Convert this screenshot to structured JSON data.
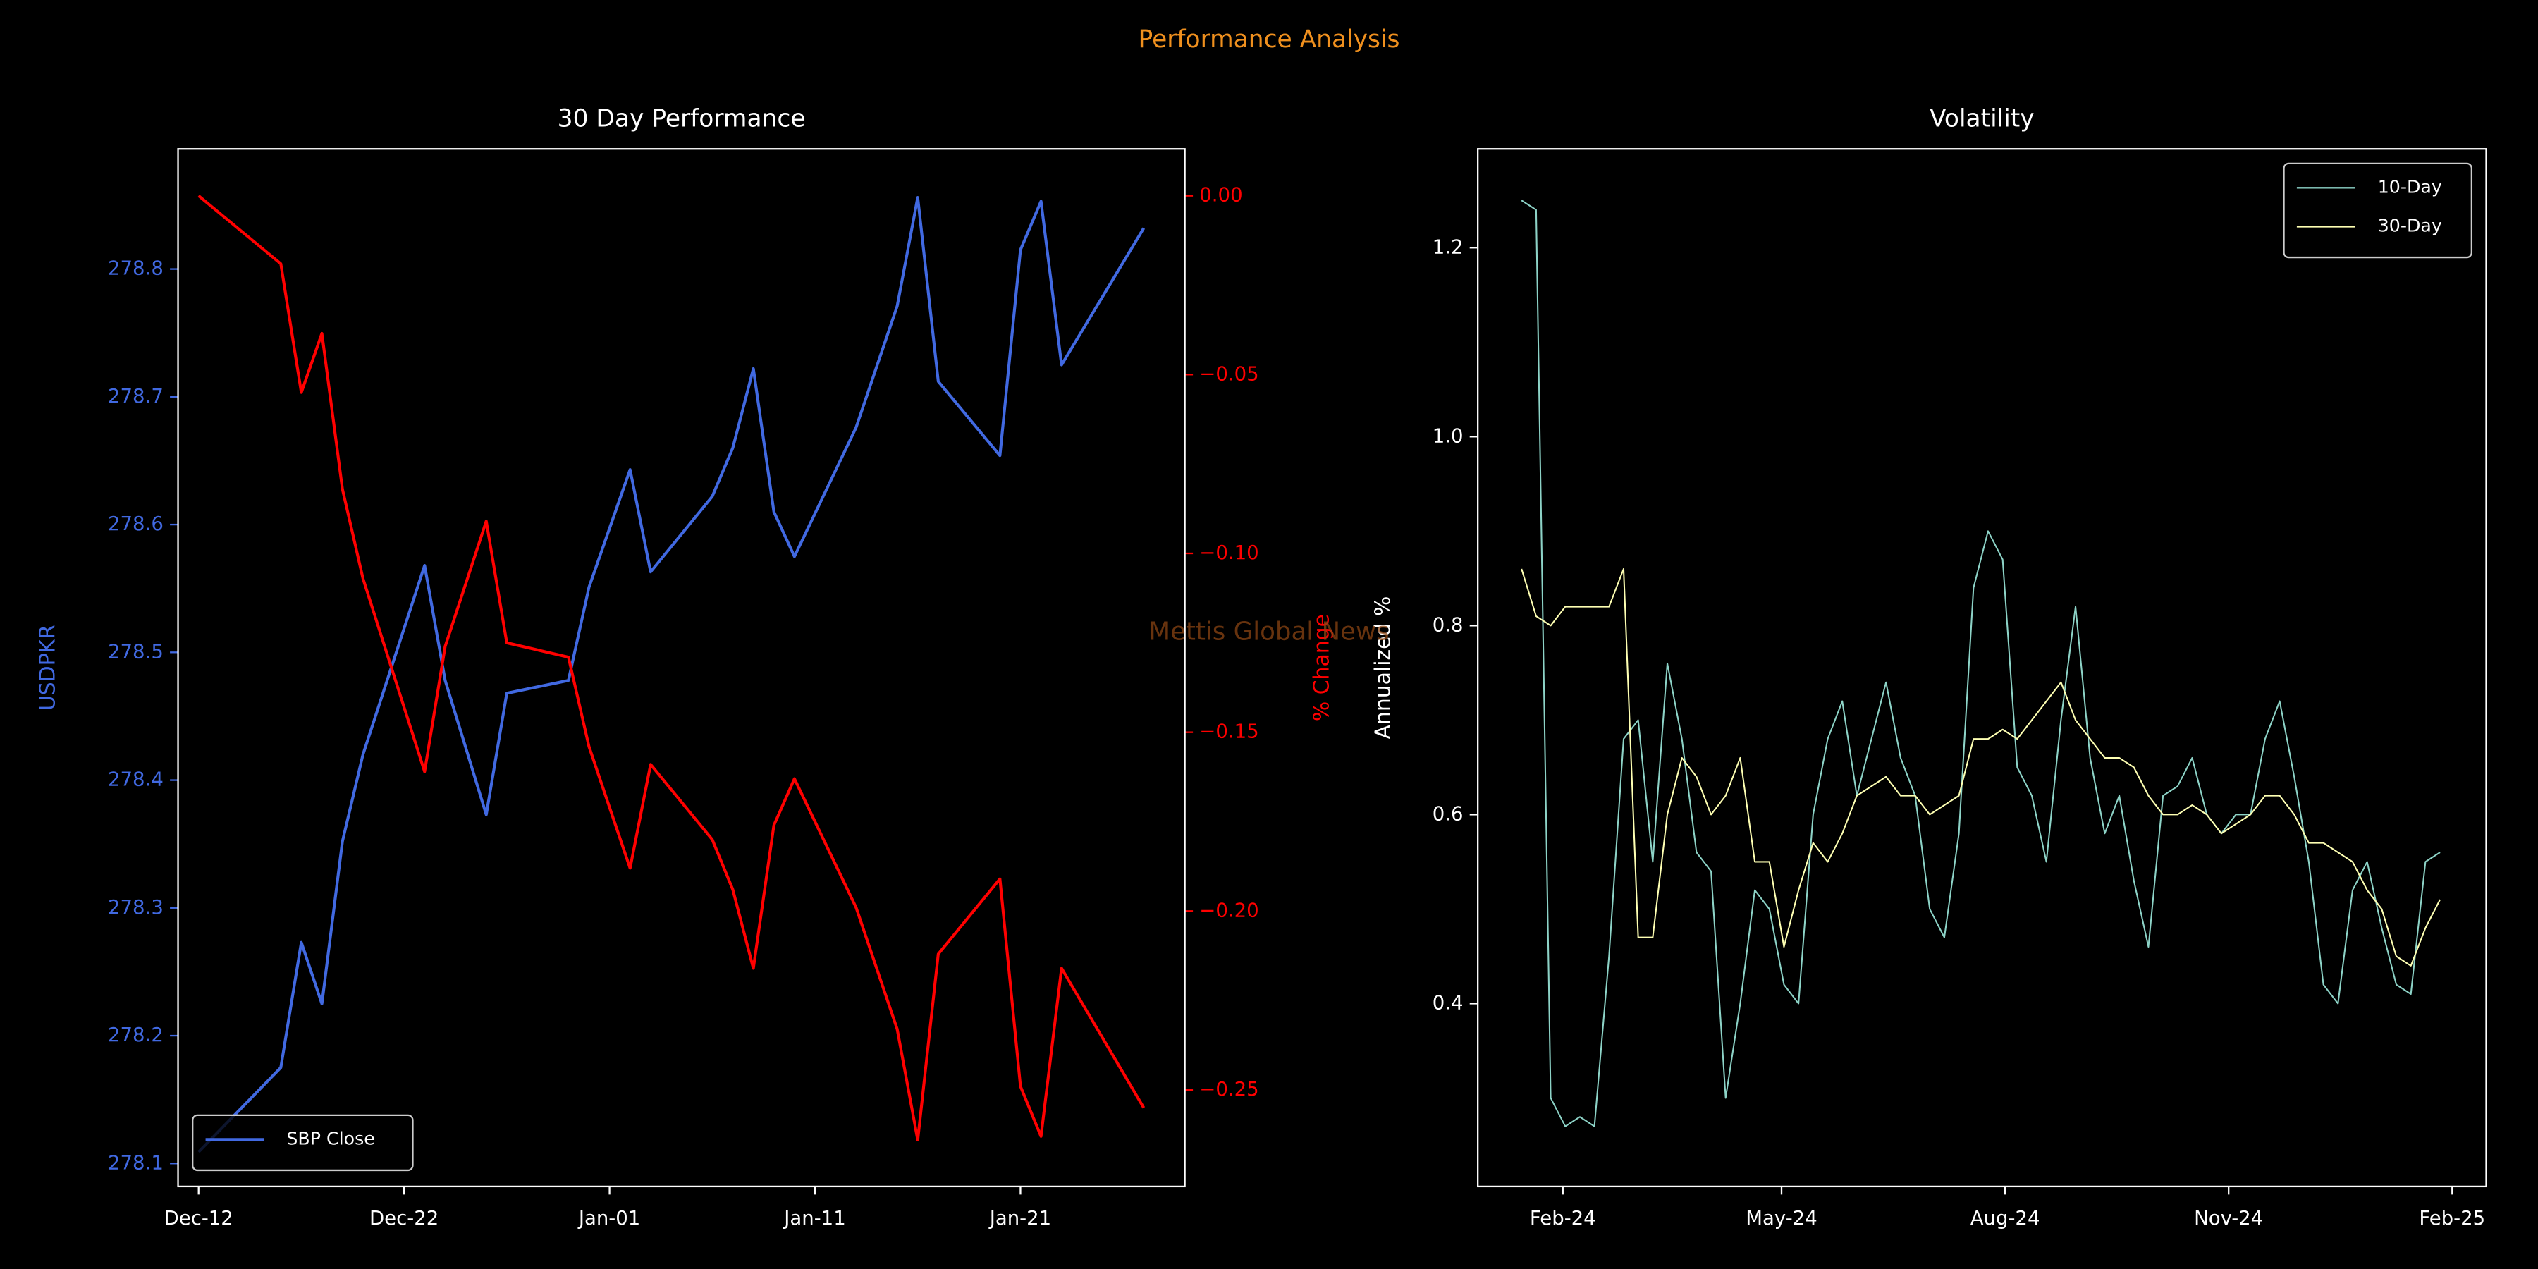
{
  "title": "Performance Analysis",
  "watermark": "Mettis Global News",
  "chart_data": [
    {
      "type": "line",
      "title": "30 Day Performance",
      "ylabel": "USDPKR",
      "y2label": "% Change",
      "x": [
        "Dec-12",
        "Dec-16",
        "Dec-17",
        "Dec-18",
        "Dec-19",
        "Dec-20",
        "Dec-23",
        "Dec-24",
        "Dec-26",
        "Dec-27",
        "Dec-30",
        "Dec-31",
        "Jan-02",
        "Jan-03",
        "Jan-06",
        "Jan-07",
        "Jan-08",
        "Jan-09",
        "Jan-10",
        "Jan-13",
        "Jan-15",
        "Jan-16",
        "Jan-17",
        "Jan-20",
        "Jan-21",
        "Jan-22",
        "Jan-23",
        "Jan-27"
      ],
      "series": [
        {
          "name": "SBP Close",
          "color": "#4169e1",
          "values": [
            278.109,
            278.175,
            278.273,
            278.225,
            278.352,
            278.42,
            278.568,
            278.478,
            278.373,
            278.468,
            278.478,
            278.551,
            278.643,
            278.563,
            278.622,
            278.66,
            278.722,
            278.61,
            278.575,
            278.676,
            278.771,
            278.856,
            278.712,
            278.654,
            278.815,
            278.853,
            278.725,
            278.832
          ]
        },
        {
          "color": "#ff0000",
          "axis": "y2",
          "values": [
            0.0,
            -0.019,
            -0.055,
            -0.0385,
            -0.082,
            -0.107,
            -0.161,
            -0.126,
            -0.091,
            -0.125,
            -0.129,
            -0.154,
            -0.188,
            -0.159,
            -0.18,
            -0.194,
            -0.216,
            -0.176,
            -0.163,
            -0.199,
            -0.233,
            -0.264,
            -0.212,
            -0.191,
            -0.249,
            -0.263,
            -0.216,
            -0.255
          ]
        }
      ],
      "xlim": [
        "Dec-11",
        "Jan-29"
      ],
      "xticks": [
        "Dec-12",
        "Dec-22",
        "Jan-01",
        "Jan-11",
        "Jan-21"
      ],
      "ylim": [
        278.082,
        278.894
      ],
      "yticks": [
        278.1,
        278.2,
        278.3,
        278.4,
        278.5,
        278.6,
        278.7,
        278.8
      ],
      "y2lim": [
        -0.277,
        0.0131
      ],
      "y2ticks": [
        {
          "value": 0,
          "label": "0.00"
        },
        {
          "value": -0.05,
          "label": "−0.05"
        },
        {
          "value": -0.1,
          "label": "−0.10"
        },
        {
          "value": -0.15,
          "label": "−0.15"
        },
        {
          "value": -0.2,
          "label": "−0.20"
        },
        {
          "value": -0.25,
          "label": "−0.25"
        }
      ],
      "legend": "lower left"
    },
    {
      "type": "line",
      "title": "Volatility",
      "ylabel": "Annualized %",
      "x": [
        "2024-01-15",
        "2024-01-21",
        "2024-01-27",
        "2024-02-02",
        "2024-02-08",
        "2024-02-14",
        "2024-02-20",
        "2024-02-26",
        "2024-03-03",
        "2024-03-09",
        "2024-03-15",
        "2024-03-21",
        "2024-03-27",
        "2024-04-02",
        "2024-04-08",
        "2024-04-14",
        "2024-04-20",
        "2024-04-26",
        "2024-05-02",
        "2024-05-08",
        "2024-05-14",
        "2024-05-20",
        "2024-05-26",
        "2024-06-01",
        "2024-06-07",
        "2024-06-13",
        "2024-06-19",
        "2024-06-25",
        "2024-07-01",
        "2024-07-07",
        "2024-07-13",
        "2024-07-19",
        "2024-07-25",
        "2024-07-31",
        "2024-08-06",
        "2024-08-12",
        "2024-08-18",
        "2024-08-24",
        "2024-08-30",
        "2024-09-05",
        "2024-09-11",
        "2024-09-17",
        "2024-09-23",
        "2024-09-29",
        "2024-10-05",
        "2024-10-11",
        "2024-10-17",
        "2024-10-23",
        "2024-10-29",
        "2024-11-04",
        "2024-11-10",
        "2024-11-16",
        "2024-11-22",
        "2024-11-28",
        "2024-12-04",
        "2024-12-10",
        "2024-12-16",
        "2024-12-22",
        "2024-12-28",
        "2025-01-03",
        "2025-01-09",
        "2025-01-15",
        "2025-01-21",
        "2025-01-27"
      ],
      "series": [
        {
          "name": "10-Day",
          "color": "#8dd3c7",
          "values": [
            1.25,
            1.24,
            0.3,
            0.27,
            0.28,
            0.27,
            0.45,
            0.68,
            0.7,
            0.55,
            0.76,
            0.68,
            0.56,
            0.54,
            0.3,
            0.4,
            0.52,
            0.5,
            0.42,
            0.4,
            0.6,
            0.68,
            0.72,
            0.62,
            0.68,
            0.74,
            0.66,
            0.62,
            0.5,
            0.47,
            0.58,
            0.84,
            0.9,
            0.87,
            0.65,
            0.62,
            0.55,
            0.7,
            0.82,
            0.66,
            0.58,
            0.62,
            0.53,
            0.46,
            0.62,
            0.63,
            0.66,
            0.6,
            0.58,
            0.6,
            0.6,
            0.68,
            0.72,
            0.64,
            0.55,
            0.42,
            0.4,
            0.52,
            0.55,
            0.48,
            0.42,
            0.41,
            0.55,
            0.56
          ]
        },
        {
          "name": "30-Day",
          "color": "#feffb3",
          "values": [
            0.86,
            0.81,
            0.8,
            0.82,
            0.82,
            0.82,
            0.82,
            0.86,
            0.47,
            0.47,
            0.6,
            0.66,
            0.64,
            0.6,
            0.62,
            0.66,
            0.55,
            0.55,
            0.46,
            0.52,
            0.57,
            0.55,
            0.58,
            0.62,
            0.63,
            0.64,
            0.62,
            0.62,
            0.6,
            0.61,
            0.62,
            0.68,
            0.68,
            0.69,
            0.68,
            0.7,
            0.72,
            0.74,
            0.7,
            0.68,
            0.66,
            0.66,
            0.65,
            0.62,
            0.6,
            0.6,
            0.61,
            0.6,
            0.58,
            0.59,
            0.6,
            0.62,
            0.62,
            0.6,
            0.57,
            0.57,
            0.56,
            0.55,
            0.52,
            0.5,
            0.45,
            0.44,
            0.48,
            0.51
          ]
        }
      ],
      "xlim": [
        "2023-12-28",
        "2025-02-15"
      ],
      "xticks": [
        {
          "value": "2024-02-01",
          "label": "Feb-24"
        },
        {
          "value": "2024-05-01",
          "label": "May-24"
        },
        {
          "value": "2024-08-01",
          "label": "Aug-24"
        },
        {
          "value": "2024-11-01",
          "label": "Nov-24"
        },
        {
          "value": "2025-02-01",
          "label": "Feb-25"
        }
      ],
      "ylim": [
        0.2064,
        1.3045
      ],
      "yticks": [
        0.4,
        0.6,
        0.8,
        {
          "value": 1,
          "label": "1.0"
        },
        1.2
      ],
      "legend": "upper right"
    }
  ]
}
